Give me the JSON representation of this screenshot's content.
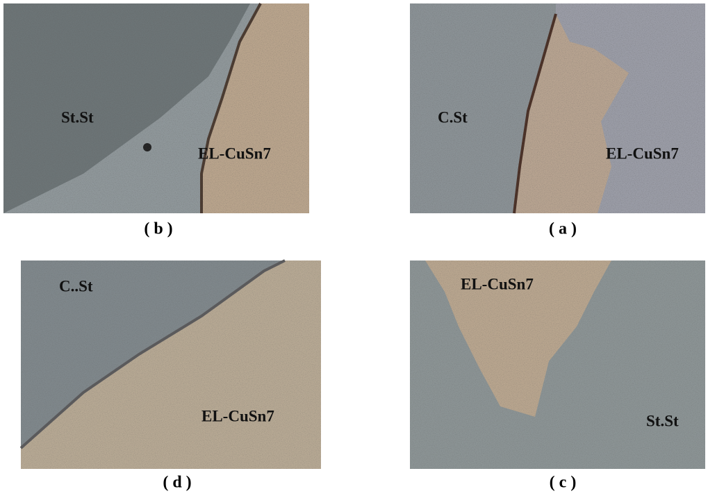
{
  "panels": [
    {
      "caption": "( b )",
      "labels": [
        "St.St",
        "EL-CuSn7"
      ]
    },
    {
      "caption": "( a )",
      "labels": [
        "C.St",
        "EL-CuSn7"
      ]
    },
    {
      "caption": "( d )",
      "labels": [
        "C..St",
        "EL-CuSn7"
      ]
    },
    {
      "caption": "( c )",
      "labels": [
        "EL-CuSn7",
        "St.St"
      ]
    }
  ]
}
